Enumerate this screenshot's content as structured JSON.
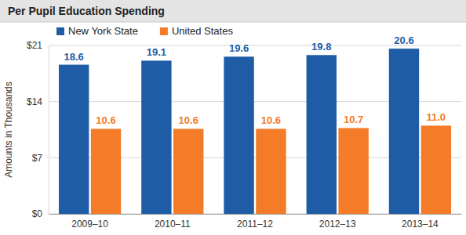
{
  "chart_data": {
    "type": "bar",
    "title": "Per Pupil Education Spending",
    "ylabel": "Amounts in Thousands",
    "categories": [
      "2009–10",
      "2010–11",
      "2011–12",
      "2012–13",
      "2013–14"
    ],
    "series": [
      {
        "name": "New York State",
        "color": "#1f5ca6",
        "values": [
          18.6,
          19.1,
          19.6,
          19.8,
          20.6
        ]
      },
      {
        "name": "United States",
        "color": "#f47b27",
        "values": [
          10.6,
          10.6,
          10.6,
          10.7,
          11.0
        ],
        "value_labels": [
          "10.6",
          "10.6",
          "10.6",
          "10.7",
          "11.0"
        ]
      }
    ],
    "ylim": [
      0,
      21
    ],
    "yticks": [
      {
        "value": 0,
        "label": "$0"
      },
      {
        "value": 7,
        "label": "$7"
      },
      {
        "value": 14,
        "label": "$14"
      },
      {
        "value": 21,
        "label": "$21"
      }
    ],
    "grid": true,
    "data_labels": true,
    "legend": "top left"
  }
}
